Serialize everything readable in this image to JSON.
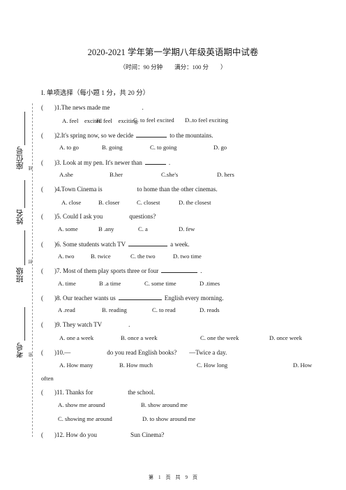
{
  "header": {
    "title": "2020-2021 学年第一学期八年级英语期中试卷",
    "subtitle": "（时间：90 分钟　　满分：100 分　　）"
  },
  "section": {
    "heading": "I. 单项选择（每小题 1 分，共 20 分）"
  },
  "questions": [
    {
      "paren": "(",
      "close": ")",
      "text": "1.The news made me",
      "tail": ".",
      "options": [
        "A. feel　excited",
        "B. feel　exciting",
        "C. to feel excited",
        "D..to feel exciting"
      ]
    },
    {
      "paren": "(",
      "close": ")",
      "text": "2.It's spring now, so we decide",
      "tail": "to the mountains.",
      "options": [
        "A. to go",
        "B. going",
        "C. to going",
        "D. go"
      ]
    },
    {
      "paren": "(",
      "close": ")",
      "text": "3. Look at my pen. It's newer than",
      "tail": ".",
      "options": [
        "A.she",
        "B.her",
        "C.she's",
        "D. hers"
      ]
    },
    {
      "paren": "(",
      "close": ")",
      "text": "4.Town Cinema is",
      "tail": "to home than the other cinemas.",
      "options": [
        "A. close",
        "B. closer",
        "C. closest",
        "D. the closest"
      ]
    },
    {
      "paren": "(",
      "close": ")",
      "text": "5. Could I ask you",
      "tail": "questions?",
      "options": [
        "A. some",
        "B .any",
        "C. a",
        "D. few"
      ]
    },
    {
      "paren": "(",
      "close": ")",
      "text": "6. Some students watch TV",
      "tail": "a week.",
      "options": [
        "A. two",
        "B. twice",
        "C. the two",
        "D. two time"
      ]
    },
    {
      "paren": "(",
      "close": ")",
      "text": "7. Most of them play sports three or four",
      "tail": ".",
      "options": [
        "A. time",
        "B .a time",
        "C. some time",
        "D .times"
      ]
    },
    {
      "paren": "(",
      "close": ")",
      "text": "8. Our teacher wants us",
      "tail": "English every morning.",
      "options": [
        "A .read",
        "B. reading",
        "C. to read",
        "D. reads"
      ]
    },
    {
      "paren": "(",
      "close": ")",
      "text": "9. They watch TV",
      "tail": ".",
      "options": [
        "A. one a week",
        "B. once a week",
        "C. one the week",
        "D. once week"
      ]
    },
    {
      "paren": "(",
      "close": ")",
      "text": "10.—",
      "tail": "do you read English books?　　—Twice a day.",
      "options": [
        "A.  How  many",
        "B.  How  much",
        "C.  How  long",
        "D.  How"
      ],
      "wrap": "often"
    },
    {
      "paren": "(",
      "close": ")",
      "text": "11. Thanks for",
      "tail": "the school.",
      "options": [
        "A. show me around",
        "B. show around me",
        "C. showing me around",
        "D. to show around me"
      ]
    },
    {
      "paren": "(",
      "close": ")",
      "text": "12. How do you",
      "tail": "Sun Cinema?",
      "options": []
    }
  ],
  "sidebar": {
    "seat": "座位号",
    "name": "姓名",
    "class": "班级",
    "exam_no": "考号",
    "mark_line": "线",
    "mark_seal": "封",
    "mark_dense": "密"
  },
  "footer": {
    "text": "第　1　页　共　9　页"
  }
}
